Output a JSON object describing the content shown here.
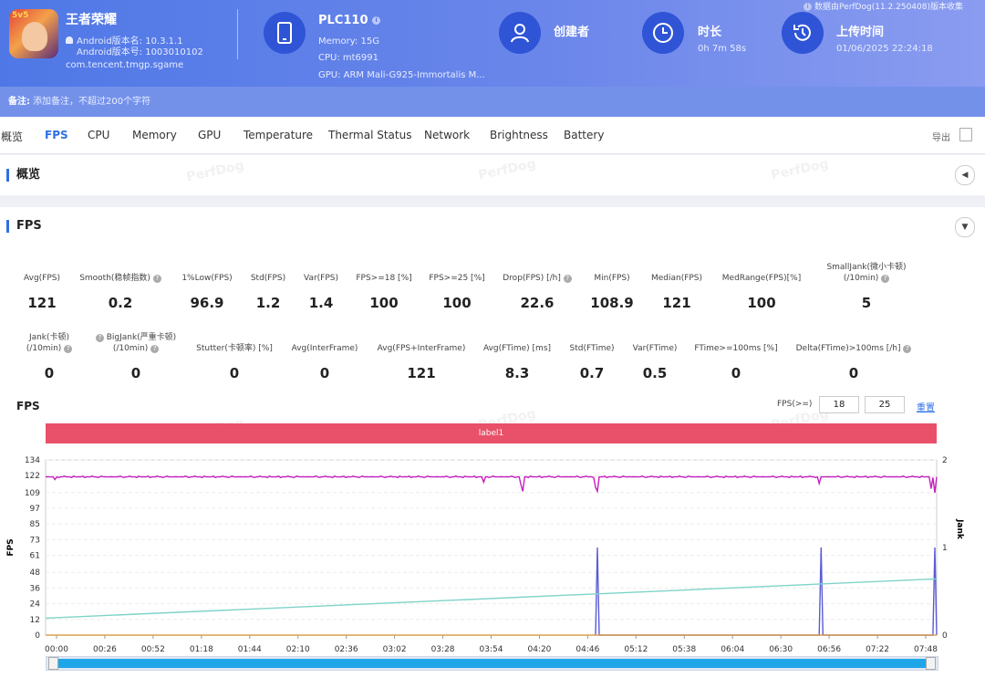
{
  "header": {
    "app_name": "王者荣耀",
    "app_version": "Android版本名: 10.3.1.1",
    "app_build": "Android版本号: 1003010102",
    "package": "com.tencent.tmgp.sgame",
    "device_model": "PLC110",
    "memory": "Memory: 15G",
    "cpu": "CPU: mt6991",
    "gpu": "GPU: ARM Mali-G925-Immortalis M...",
    "creator_label": "创建者",
    "duration_label": "时长",
    "duration_value": "0h 7m 58s",
    "upload_label": "上传时间",
    "upload_value": "01/06/2025 22:24:18",
    "version_note": "数据由PerfDog(11.2.250408)版本收集",
    "icon_badge": "5v5"
  },
  "note": {
    "label": "备注:",
    "placeholder": "添加备注，不超过200个字符"
  },
  "tabs": [
    "概览",
    "FPS",
    "CPU",
    "Memory",
    "GPU",
    "Temperature",
    "Thermal Status",
    "Network",
    "Brightness",
    "Battery"
  ],
  "active_tab": "FPS",
  "export_label": "导出",
  "watermark": "PerfDog",
  "sections": {
    "overview": "概览",
    "fps": "FPS"
  },
  "metrics_row1": [
    {
      "label": "Avg(FPS)",
      "value": "121"
    },
    {
      "label": "Smooth(稳帧指数)",
      "value": "0.2"
    },
    {
      "label": "1%Low(FPS)",
      "value": "96.9"
    },
    {
      "label": "Std(FPS)",
      "value": "1.2"
    },
    {
      "label": "Var(FPS)",
      "value": "1.4"
    },
    {
      "label": "FPS>=18 [%]",
      "value": "100"
    },
    {
      "label": "FPS>=25 [%]",
      "value": "100"
    },
    {
      "label": "Drop(FPS) [/h]",
      "value": "22.6"
    },
    {
      "label": "Min(FPS)",
      "value": "108.9"
    },
    {
      "label": "Median(FPS)",
      "value": "121"
    },
    {
      "label": "MedRange(FPS)[%]",
      "value": "100"
    },
    {
      "label": "SmallJank(微小卡顿)",
      "label2": "(/10min)",
      "value": "5"
    }
  ],
  "metrics_row2": [
    {
      "label": "Jank(卡顿)",
      "label2": "(/10min)",
      "value": "0"
    },
    {
      "label": "BigJank(严重卡顿)",
      "label2": "(/10min)",
      "value": "0"
    },
    {
      "label": "Stutter(卡顿率) [%]",
      "value": "0"
    },
    {
      "label": "Avg(InterFrame)",
      "value": "0"
    },
    {
      "label": "Avg(FPS+InterFrame)",
      "value": "121"
    },
    {
      "label": "Avg(FTime) [ms]",
      "value": "8.3"
    },
    {
      "label": "Std(FTime)",
      "value": "0.7"
    },
    {
      "label": "Var(FTime)",
      "value": "0.5"
    },
    {
      "label": "FTime>=100ms [%]",
      "value": "0"
    },
    {
      "label": "Delta(FTime)>100ms [/h]",
      "value": "0"
    }
  ],
  "chart": {
    "title": "FPS",
    "threshold_label": "FPS(>=)",
    "threshold_low": "18",
    "threshold_high": "25",
    "reset_label": "重置",
    "label_bar": "label1",
    "ylabel_left": "FPS",
    "ylabel_right": "Jank"
  },
  "chart_data": {
    "type": "line",
    "x_ticks": [
      "00:00",
      "00:26",
      "00:52",
      "01:18",
      "01:44",
      "02:10",
      "02:36",
      "03:02",
      "03:28",
      "03:54",
      "04:20",
      "04:46",
      "05:12",
      "05:38",
      "06:04",
      "06:30",
      "06:56",
      "07:22",
      "07:48"
    ],
    "x_range_seconds": [
      0,
      478
    ],
    "y_ticks_left": [
      0,
      12,
      24,
      36,
      48,
      61,
      73,
      85,
      97,
      109,
      122,
      134
    ],
    "ylim_left": [
      0,
      134
    ],
    "y_ticks_right": [
      0,
      1,
      2
    ],
    "ylim_right": [
      0,
      2
    ],
    "series": [
      {
        "name": "FPS",
        "color": "#c51fbf",
        "axis": "left",
        "baseline": 121,
        "dips": [
          [
            5,
            119
          ],
          [
            235,
            117
          ],
          [
            255,
            115
          ],
          [
            256,
            110
          ],
          [
            295,
            113
          ],
          [
            296,
            110
          ],
          [
            415,
            116
          ],
          [
            475,
            112
          ],
          [
            477,
            108.9
          ]
        ]
      },
      {
        "name": "Jank",
        "color": "#5b5bd6",
        "axis": "right",
        "points": [
          [
            295,
            0
          ],
          [
            296,
            1
          ],
          [
            297,
            0
          ],
          [
            415,
            0
          ],
          [
            416,
            1
          ],
          [
            417,
            0
          ],
          [
            476,
            0
          ],
          [
            477,
            1
          ],
          [
            478,
            0
          ]
        ]
      },
      {
        "color": "#7fd3c8",
        "axis": "left",
        "points": [
          [
            0,
            13
          ],
          [
            478,
            43
          ]
        ]
      },
      {
        "color": "#d9a050",
        "axis": "left",
        "points": [
          [
            0,
            0
          ],
          [
            478,
            0
          ]
        ]
      }
    ]
  },
  "colors": {
    "accent": "#2f6fe4",
    "header": "#4f78e6",
    "label_bar": "#e95069",
    "scroll": "#1fa6e8"
  }
}
